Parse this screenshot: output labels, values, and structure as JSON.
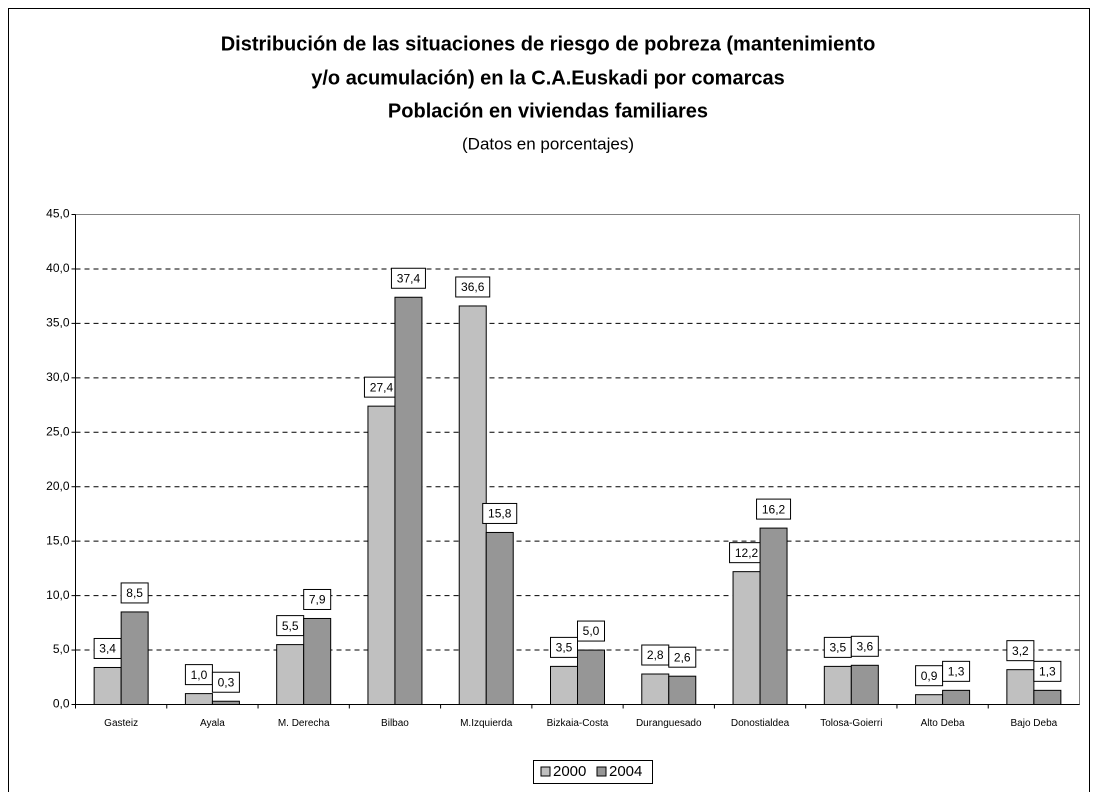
{
  "chart_data": {
    "type": "bar",
    "title": [
      "Distribución de las situaciones de riesgo de pobreza (mantenimiento",
      "y/o acumulación) en la C.A.Euskadi por comarcas"
    ],
    "subtitle": "Población en viviendas familiares",
    "note": "(Datos en porcentajes)",
    "categories": [
      "Gasteiz",
      "Ayala",
      "M. Derecha",
      "Bilbao",
      "M.Izquierda",
      "Bizkaia-Costa",
      "Duranguesado",
      "Donostialdea",
      "Tolosa-Goierri",
      "Alto Deba",
      "Bajo Deba"
    ],
    "series": [
      {
        "name": "2000",
        "color": "#c0c0c0",
        "values": [
          3.4,
          1.0,
          5.5,
          27.4,
          36.6,
          3.5,
          2.8,
          12.2,
          3.5,
          0.9,
          3.2
        ],
        "value_labels": [
          "3,4",
          "1,0",
          "5,5",
          "27,4",
          "36,6",
          "3,5",
          "2,8",
          "12,2",
          "3,5",
          "0,9",
          "3,2"
        ]
      },
      {
        "name": "2004",
        "color": "#969696",
        "values": [
          8.5,
          0.3,
          7.9,
          37.4,
          15.8,
          5.0,
          2.6,
          16.2,
          3.6,
          1.3,
          1.3
        ],
        "value_labels": [
          "8,5",
          "0,3",
          "7,9",
          "37,4",
          "15,8",
          "5,0",
          "2,6",
          "16,2",
          "3,6",
          "1,3",
          "1,3"
        ]
      }
    ],
    "ylim": [
      0,
      45
    ],
    "yticks": [
      {
        "value": 0,
        "label": "0,0"
      },
      {
        "value": 5,
        "label": "5,0"
      },
      {
        "value": 10,
        "label": "10,0"
      },
      {
        "value": 15,
        "label": "15,0"
      },
      {
        "value": 20,
        "label": "20,0"
      },
      {
        "value": 25,
        "label": "25,0"
      },
      {
        "value": 30,
        "label": "30,0"
      },
      {
        "value": 35,
        "label": "35,0"
      },
      {
        "value": 40,
        "label": "40,0"
      },
      {
        "value": 45,
        "label": "45,0"
      }
    ],
    "grid": true,
    "legend": "bottom"
  }
}
